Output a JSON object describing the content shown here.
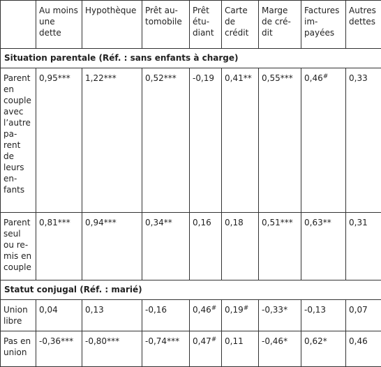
{
  "columns": [
    "",
    "Au moins une dette",
    "Hypothèque",
    "Prêt au-tomobile",
    "Prêt étu-diant",
    "Carte de crédit",
    "Marge de cré-dit",
    "Factures im-payées",
    "Autres dettes"
  ],
  "sections": [
    {
      "title": "Situation parentale (Réf. : sans enfants à charge)",
      "rows": [
        {
          "label": "Parent en couple avec l’autre pa-rent de leurs en-fants",
          "cells": [
            {
              "v": "0,95",
              "s": "***"
            },
            {
              "v": "1,22",
              "s": "***"
            },
            {
              "v": "0,52",
              "s": "***"
            },
            {
              "v": "-0,19",
              "s": ""
            },
            {
              "v": "0,41",
              "s": "**"
            },
            {
              "v": "0,55",
              "s": "***"
            },
            {
              "v": "0,46",
              "s": "#"
            },
            {
              "v": "0,33",
              "s": ""
            }
          ]
        },
        {
          "label": "Parent seul ou re-mis en couple",
          "cells": [
            {
              "v": "0,81",
              "s": "***"
            },
            {
              "v": "0,94",
              "s": "***"
            },
            {
              "v": "0,34",
              "s": "**"
            },
            {
              "v": "0,16",
              "s": ""
            },
            {
              "v": "0,18",
              "s": ""
            },
            {
              "v": "0,51",
              "s": "***"
            },
            {
              "v": "0,63",
              "s": "**"
            },
            {
              "v": "0,31",
              "s": ""
            }
          ]
        }
      ]
    },
    {
      "title": "Statut conjugal (Réf. : marié)",
      "rows": [
        {
          "label": "Union libre",
          "cells": [
            {
              "v": "0,04",
              "s": ""
            },
            {
              "v": "0,13",
              "s": ""
            },
            {
              "v": "-0,16",
              "s": ""
            },
            {
              "v": "0,46",
              "s": "#"
            },
            {
              "v": "0,19",
              "s": "#"
            },
            {
              "v": "-0,33",
              "s": "*"
            },
            {
              "v": "-0,13",
              "s": ""
            },
            {
              "v": "0,07",
              "s": ""
            }
          ]
        },
        {
          "label": "Pas en union",
          "cells": [
            {
              "v": "-0,36",
              "s": "***"
            },
            {
              "v": "-0,80",
              "s": "***"
            },
            {
              "v": "-0,74",
              "s": "***"
            },
            {
              "v": "0,47",
              "s": "#"
            },
            {
              "v": "0,11",
              "s": ""
            },
            {
              "v": "-0,46",
              "s": "*"
            },
            {
              "v": "0,62",
              "s": "*"
            },
            {
              "v": "0,46",
              "s": ""
            }
          ]
        }
      ]
    }
  ]
}
